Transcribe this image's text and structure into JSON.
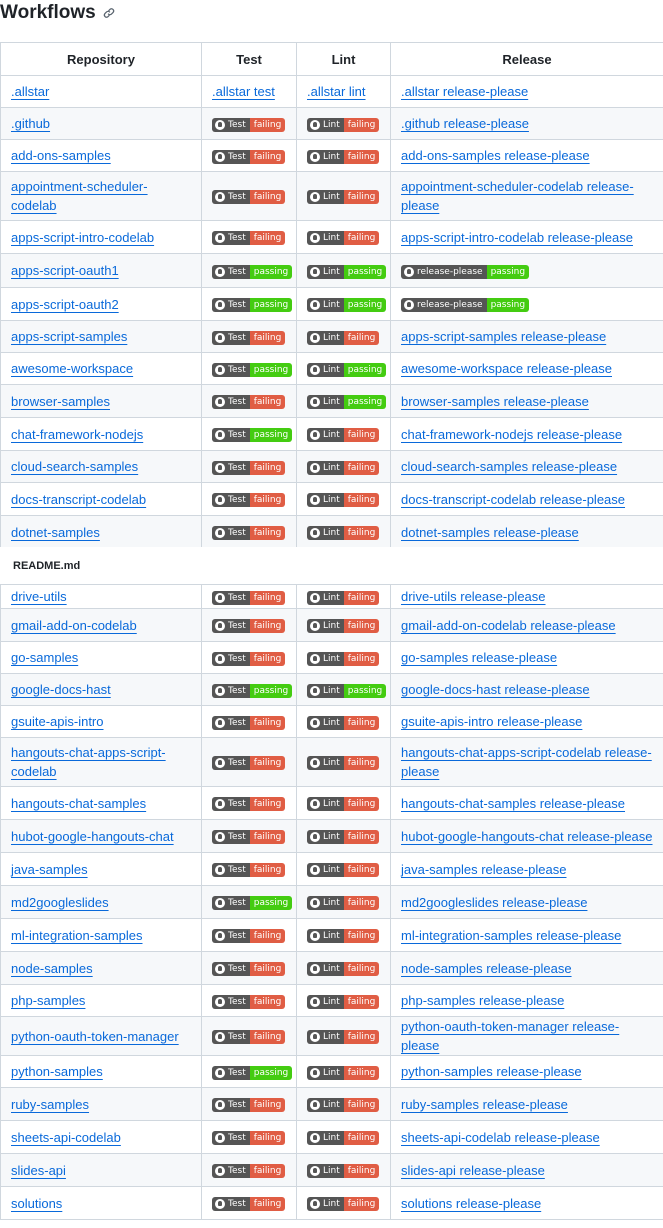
{
  "heading": {
    "title": "Workflows",
    "link_icon": "link-icon"
  },
  "columns": [
    "Repository",
    "Test",
    "Lint",
    "Release"
  ],
  "file_label": "README.md",
  "colors": {
    "link": "#0969da",
    "failing": "#e05d44",
    "passing": "#4c1",
    "badge_label": "#555"
  },
  "rows_top": [
    {
      "repo": ".allstar",
      "test": {
        "text": ".allstar test"
      },
      "lint": {
        "text": ".allstar lint"
      },
      "release": {
        "text": ".allstar release-please"
      }
    },
    {
      "repo": ".github",
      "test": {
        "label": "Test",
        "status": "failing"
      },
      "lint": {
        "label": "Lint",
        "status": "failing"
      },
      "release": {
        "text": ".github release-please"
      }
    },
    {
      "repo": "add-ons-samples",
      "test": {
        "label": "Test",
        "status": "failing"
      },
      "lint": {
        "label": "Lint",
        "status": "failing"
      },
      "release": {
        "text": "add-ons-samples release-please"
      }
    },
    {
      "repo": "appointment-scheduler-codelab",
      "test": {
        "label": "Test",
        "status": "failing"
      },
      "lint": {
        "label": "Lint",
        "status": "failing"
      },
      "release": {
        "text": "appointment-scheduler-codelab release-please"
      }
    },
    {
      "repo": "apps-script-intro-codelab",
      "test": {
        "label": "Test",
        "status": "failing"
      },
      "lint": {
        "label": "Lint",
        "status": "failing"
      },
      "release": {
        "text": "apps-script-intro-codelab release-please"
      }
    },
    {
      "repo": "apps-script-oauth1",
      "test": {
        "label": "Test",
        "status": "passing"
      },
      "lint": {
        "label": "Lint",
        "status": "passing"
      },
      "release": {
        "label": "release-please",
        "status": "passing"
      }
    },
    {
      "repo": "apps-script-oauth2",
      "test": {
        "label": "Test",
        "status": "passing"
      },
      "lint": {
        "label": "Lint",
        "status": "passing"
      },
      "release": {
        "label": "release-please",
        "status": "passing"
      }
    },
    {
      "repo": "apps-script-samples",
      "test": {
        "label": "Test",
        "status": "failing"
      },
      "lint": {
        "label": "Lint",
        "status": "failing"
      },
      "release": {
        "text": "apps-script-samples release-please"
      }
    },
    {
      "repo": "awesome-workspace",
      "test": {
        "label": "Test",
        "status": "passing"
      },
      "lint": {
        "label": "Lint",
        "status": "passing"
      },
      "release": {
        "text": "awesome-workspace release-please"
      }
    },
    {
      "repo": "browser-samples",
      "test": {
        "label": "Test",
        "status": "failing"
      },
      "lint": {
        "label": "Lint",
        "status": "passing"
      },
      "release": {
        "text": "browser-samples release-please"
      }
    },
    {
      "repo": "chat-framework-nodejs",
      "test": {
        "label": "Test",
        "status": "passing"
      },
      "lint": {
        "label": "Lint",
        "status": "failing"
      },
      "release": {
        "text": "chat-framework-nodejs release-please"
      }
    },
    {
      "repo": "cloud-search-samples",
      "test": {
        "label": "Test",
        "status": "failing"
      },
      "lint": {
        "label": "Lint",
        "status": "failing"
      },
      "release": {
        "text": "cloud-search-samples release-please"
      }
    },
    {
      "repo": "docs-transcript-codelab",
      "test": {
        "label": "Test",
        "status": "failing"
      },
      "lint": {
        "label": "Lint",
        "status": "failing"
      },
      "release": {
        "text": "docs-transcript-codelab release-please"
      }
    },
    {
      "repo": "dotnet-samples",
      "test": {
        "label": "Test",
        "status": "failing"
      },
      "lint": {
        "label": "Lint",
        "status": "failing"
      },
      "release": {
        "text": "dotnet-samples release-please"
      }
    }
  ],
  "rows_bottom": [
    {
      "repo": "drive-utils",
      "test": {
        "label": "Test",
        "status": "failing"
      },
      "lint": {
        "label": "Lint",
        "status": "failing"
      },
      "release": {
        "text": "drive-utils release-please"
      }
    },
    {
      "repo": "gmail-add-on-codelab",
      "test": {
        "label": "Test",
        "status": "failing"
      },
      "lint": {
        "label": "Lint",
        "status": "failing"
      },
      "release": {
        "text": "gmail-add-on-codelab release-please"
      }
    },
    {
      "repo": "go-samples",
      "test": {
        "label": "Test",
        "status": "failing"
      },
      "lint": {
        "label": "Lint",
        "status": "failing"
      },
      "release": {
        "text": "go-samples release-please"
      }
    },
    {
      "repo": "google-docs-hast",
      "test": {
        "label": "Test",
        "status": "passing"
      },
      "lint": {
        "label": "Lint",
        "status": "passing"
      },
      "release": {
        "text": "google-docs-hast release-please"
      }
    },
    {
      "repo": "gsuite-apis-intro",
      "test": {
        "label": "Test",
        "status": "failing"
      },
      "lint": {
        "label": "Lint",
        "status": "failing"
      },
      "release": {
        "text": "gsuite-apis-intro release-please"
      }
    },
    {
      "repo": "hangouts-chat-apps-script-codelab",
      "test": {
        "label": "Test",
        "status": "failing"
      },
      "lint": {
        "label": "Lint",
        "status": "failing"
      },
      "release": {
        "text": "hangouts-chat-apps-script-codelab release-please"
      }
    },
    {
      "repo": "hangouts-chat-samples",
      "test": {
        "label": "Test",
        "status": "failing"
      },
      "lint": {
        "label": "Lint",
        "status": "failing"
      },
      "release": {
        "text": "hangouts-chat-samples release-please"
      }
    },
    {
      "repo": "hubot-google-hangouts-chat",
      "test": {
        "label": "Test",
        "status": "failing"
      },
      "lint": {
        "label": "Lint",
        "status": "failing"
      },
      "release": {
        "text": "hubot-google-hangouts-chat release-please"
      }
    },
    {
      "repo": "java-samples",
      "test": {
        "label": "Test",
        "status": "failing"
      },
      "lint": {
        "label": "Lint",
        "status": "failing"
      },
      "release": {
        "text": "java-samples release-please"
      }
    },
    {
      "repo": "md2googleslides",
      "test": {
        "label": "Test",
        "status": "passing"
      },
      "lint": {
        "label": "Lint",
        "status": "failing"
      },
      "release": {
        "text": "md2googleslides release-please"
      }
    },
    {
      "repo": "ml-integration-samples",
      "test": {
        "label": "Test",
        "status": "failing"
      },
      "lint": {
        "label": "Lint",
        "status": "failing"
      },
      "release": {
        "text": "ml-integration-samples release-please"
      }
    },
    {
      "repo": "node-samples",
      "test": {
        "label": "Test",
        "status": "failing"
      },
      "lint": {
        "label": "Lint",
        "status": "failing"
      },
      "release": {
        "text": "node-samples release-please"
      }
    },
    {
      "repo": "php-samples",
      "test": {
        "label": "Test",
        "status": "failing"
      },
      "lint": {
        "label": "Lint",
        "status": "failing"
      },
      "release": {
        "text": "php-samples release-please"
      }
    },
    {
      "repo": "python-oauth-token-manager",
      "test": {
        "label": "Test",
        "status": "failing"
      },
      "lint": {
        "label": "Lint",
        "status": "failing"
      },
      "release": {
        "text": "python-oauth-token-manager release-please"
      }
    },
    {
      "repo": "python-samples",
      "test": {
        "label": "Test",
        "status": "passing"
      },
      "lint": {
        "label": "Lint",
        "status": "failing"
      },
      "release": {
        "text": "python-samples release-please"
      }
    },
    {
      "repo": "ruby-samples",
      "test": {
        "label": "Test",
        "status": "failing"
      },
      "lint": {
        "label": "Lint",
        "status": "failing"
      },
      "release": {
        "text": "ruby-samples release-please"
      }
    },
    {
      "repo": "sheets-api-codelab",
      "test": {
        "label": "Test",
        "status": "failing"
      },
      "lint": {
        "label": "Lint",
        "status": "failing"
      },
      "release": {
        "text": "sheets-api-codelab release-please"
      }
    },
    {
      "repo": "slides-api",
      "test": {
        "label": "Test",
        "status": "failing"
      },
      "lint": {
        "label": "Lint",
        "status": "failing"
      },
      "release": {
        "text": "slides-api release-please"
      }
    },
    {
      "repo": "solutions",
      "test": {
        "label": "Test",
        "status": "failing"
      },
      "lint": {
        "label": "Lint",
        "status": "failing"
      },
      "release": {
        "text": "solutions release-please"
      }
    }
  ]
}
